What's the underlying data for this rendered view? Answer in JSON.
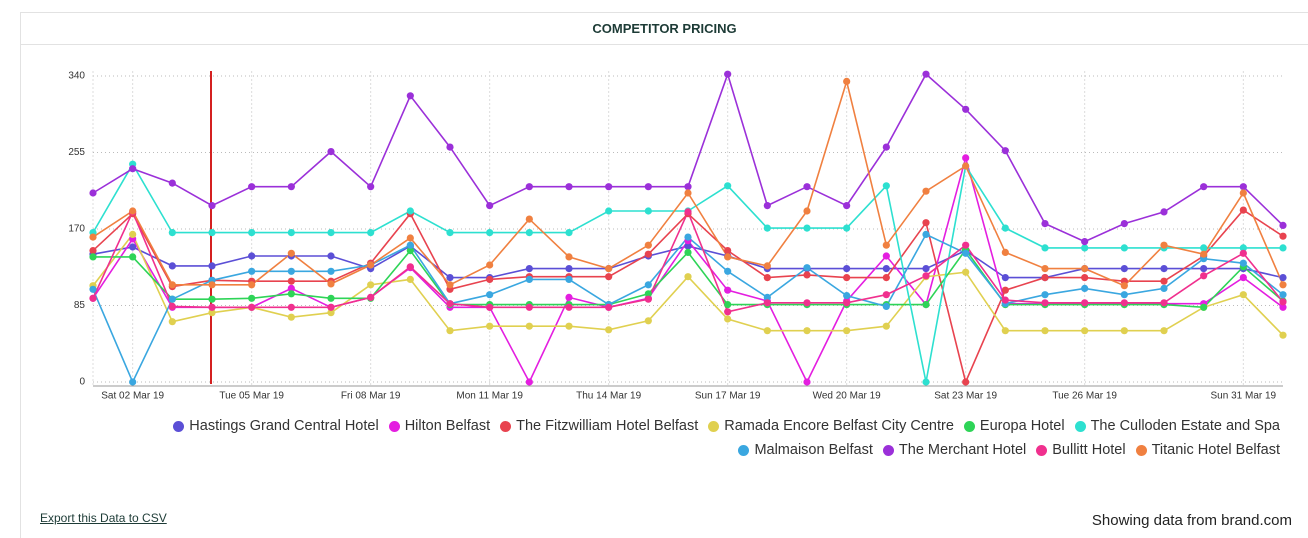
{
  "chart_data": {
    "type": "line",
    "title": "COMPETITOR PRICING",
    "categories": [
      null,
      "Sat 02 Mar 19",
      null,
      null,
      "Tue 05 Mar 19",
      null,
      null,
      "Fri 08 Mar 19",
      null,
      null,
      "Mon 11 Mar 19",
      null,
      null,
      "Thu 14 Mar 19",
      null,
      null,
      "Sun 17 Mar 19",
      null,
      null,
      "Wed 20 Mar 19",
      null,
      null,
      "Sat 23 Mar 19",
      null,
      null,
      "Tue 26 Mar 19",
      null,
      null,
      null,
      "Sun 31 Mar 19",
      null
    ],
    "ylim": [
      0,
      345
    ],
    "yticks": [
      0,
      85,
      170,
      255,
      340
    ],
    "grid": true,
    "series": [
      {
        "name": "Hastings Grand Central Hotel",
        "color": "#5b4fd6",
        "values": [
          142,
          150,
          129,
          129,
          140,
          140,
          140,
          126,
          151,
          116,
          116,
          126,
          126,
          126,
          140,
          151,
          140,
          126,
          126,
          126,
          126,
          126,
          146,
          116,
          116,
          126,
          126,
          126,
          126,
          126,
          116
        ]
      },
      {
        "name": "Hilton Belfast",
        "color": "#e41ee0",
        "values": [
          93,
          159,
          83,
          83,
          83,
          104,
          83,
          94,
          127,
          83,
          83,
          0,
          94,
          83,
          93,
          157,
          102,
          90,
          0,
          90,
          140,
          86,
          249,
          87,
          87,
          87,
          87,
          87,
          87,
          116,
          83
        ]
      },
      {
        "name": "The Fitzwilliam Hotel Belfast",
        "color": "#e8434f",
        "values": [
          146,
          187,
          106,
          113,
          112,
          112,
          112,
          132,
          187,
          103,
          114,
          117,
          117,
          117,
          142,
          187,
          146,
          116,
          119,
          116,
          116,
          177,
          0,
          102,
          116,
          116,
          112,
          112,
          140,
          191,
          162
        ]
      },
      {
        "name": "Ramada Encore Belfast City Centre",
        "color": "#e0d050",
        "values": [
          107,
          164,
          67,
          77,
          83,
          72,
          77,
          108,
          114,
          57,
          62,
          62,
          62,
          58,
          68,
          117,
          70,
          57,
          57,
          57,
          62,
          117,
          122,
          57,
          57,
          57,
          57,
          57,
          83,
          97,
          52
        ]
      },
      {
        "name": "Europa Hotel",
        "color": "#2ed457",
        "values": [
          139,
          139,
          92,
          92,
          93,
          98,
          93,
          93,
          146,
          86,
          86,
          86,
          86,
          86,
          98,
          144,
          86,
          86,
          86,
          86,
          86,
          86,
          147,
          86,
          86,
          86,
          86,
          86,
          83,
          128,
          90
        ]
      },
      {
        "name": "The Culloden Estate and Spa",
        "color": "#2de0d0",
        "values": [
          166,
          242,
          166,
          166,
          166,
          166,
          166,
          166,
          190,
          166,
          166,
          166,
          166,
          190,
          190,
          190,
          218,
          171,
          171,
          171,
          218,
          0,
          240,
          171,
          149,
          149,
          149,
          149,
          149,
          149,
          149
        ]
      },
      {
        "name": "Malmaison Belfast",
        "color": "#3aa7e0",
        "values": [
          103,
          0,
          92,
          113,
          123,
          123,
          123,
          130,
          152,
          87,
          97,
          114,
          114,
          86,
          108,
          161,
          123,
          94,
          127,
          96,
          84,
          164,
          143,
          87,
          97,
          104,
          97,
          104,
          137,
          132,
          97
        ]
      },
      {
        "name": "The Merchant Hotel",
        "color": "#9b30d9",
        "values": [
          210,
          237,
          221,
          196,
          217,
          217,
          256,
          217,
          318,
          261,
          196,
          217,
          217,
          217,
          217,
          217,
          342,
          196,
          217,
          196,
          261,
          342,
          303,
          257,
          176,
          156,
          176,
          189,
          217,
          217,
          174
        ]
      },
      {
        "name": "Bullitt Hotel",
        "color": "#f0308e",
        "values": [
          93,
          189,
          84,
          83,
          83,
          83,
          83,
          94,
          128,
          87,
          83,
          83,
          83,
          83,
          92,
          189,
          78,
          88,
          88,
          88,
          97,
          118,
          152,
          91,
          88,
          88,
          88,
          88,
          118,
          143,
          89
        ]
      },
      {
        "name": "Titanic Hotel Belfast",
        "color": "#f08040",
        "values": [
          161,
          190,
          108,
          108,
          108,
          143,
          109,
          130,
          160,
          108,
          130,
          181,
          139,
          126,
          152,
          210,
          139,
          129,
          190,
          334,
          152,
          212,
          240,
          144,
          126,
          126,
          107,
          152,
          142,
          210,
          108
        ]
      }
    ]
  },
  "footer": {
    "export_link": "Export this Data to CSV",
    "source": "Showing data from brand.com"
  }
}
